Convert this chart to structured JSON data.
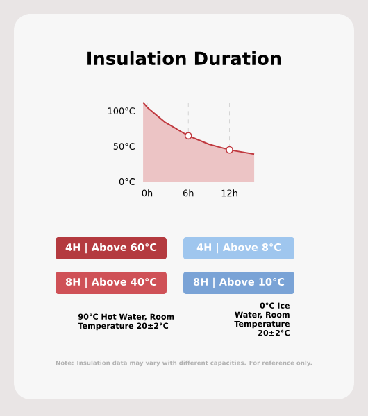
{
  "chart_data": {
    "type": "area",
    "title": "Insulation Duration",
    "xlim": [
      -0.6,
      15.6
    ],
    "ylim": [
      0,
      115
    ],
    "xticks": [
      {
        "value": 0,
        "label": "0h"
      },
      {
        "value": 6,
        "label": "6h"
      },
      {
        "value": 12,
        "label": "12h"
      }
    ],
    "yticks": [
      {
        "value": 0,
        "label": "0°C"
      },
      {
        "value": 50,
        "label": "50°C"
      },
      {
        "value": 100,
        "label": "100°C"
      }
    ],
    "grid": "x",
    "series": [
      {
        "color": "#c0393f",
        "x": [
          -0.6,
          0,
          2.6,
          6,
          9,
          12,
          15.6
        ],
        "values": [
          112,
          105,
          84,
          65,
          53,
          45,
          39
        ]
      },
      {
        "type": "scatter",
        "color": "#c0393f",
        "marker": "circle",
        "x": [
          6,
          12
        ],
        "values": [
          65,
          45
        ]
      }
    ],
    "annotations": [
      "4H | Above 60°C",
      "4H | Above 8°C",
      "8H | Above 40°C",
      "8H | Above 10°C",
      "90°C Hot Water, Room Temperature 20±2°C",
      "0°C Ice Water, Room Temperature 20±2°C",
      "Note: Insulation data may vary with different capacities. For reference only."
    ]
  }
}
